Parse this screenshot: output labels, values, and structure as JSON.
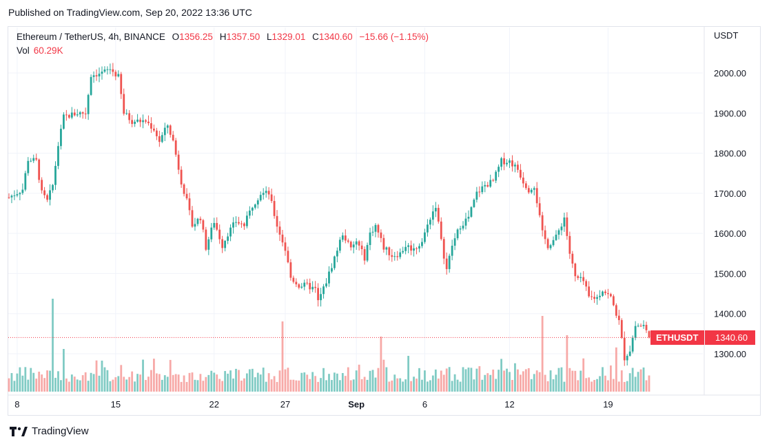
{
  "header": {
    "published": "Published on TradingView.com, Sep 20, 2022 13:36 UTC"
  },
  "legend": {
    "symbol": "Ethereum / TetherUS, 4h, BINANCE",
    "open_label": "O",
    "open": "1356.25",
    "high_label": "H",
    "high": "1357.50",
    "low_label": "L",
    "low": "1329.01",
    "close_label": "C",
    "close": "1340.60",
    "change": "−15.66 (−1.15%)",
    "vol_label": "Vol",
    "vol": "60.29K"
  },
  "price_tag": {
    "ticker": "ETHUSDT",
    "price": "1340.60"
  },
  "footer": {
    "brand": "TradingView",
    "logo_icon": "tradingview-logo-icon"
  },
  "colors": {
    "up": "#26a69a",
    "down": "#ef5350",
    "up_vol": "#80cbc4",
    "down_vol": "#f7a9a7",
    "tag": "#f23645"
  },
  "chart_data": {
    "type": "candlestick",
    "currency_label": "USDT",
    "y_ticks": [
      2000,
      1900,
      1800,
      1700,
      1600,
      1500,
      1400,
      1300
    ],
    "y_tick_labels": [
      "2000.00",
      "1900.00",
      "1800.00",
      "1700.00",
      "1600.00",
      "1500.00",
      "1400.00",
      "1300.00"
    ],
    "ylim": [
      1200,
      2100
    ],
    "x_tick_labels": [
      "8",
      "15",
      "22",
      "27",
      "Sep",
      "6",
      "12",
      "19"
    ],
    "x_tick_bar_index": [
      3,
      39,
      75,
      101,
      127,
      152,
      183,
      219
    ],
    "close_path_keypoints": [
      [
        0,
        1690
      ],
      [
        5,
        1710
      ],
      [
        7,
        1785
      ],
      [
        10,
        1780
      ],
      [
        12,
        1700
      ],
      [
        14,
        1680
      ],
      [
        16,
        1720
      ],
      [
        18,
        1820
      ],
      [
        20,
        1890
      ],
      [
        25,
        1900
      ],
      [
        28,
        1900
      ],
      [
        30,
        1995
      ],
      [
        34,
        2000
      ],
      [
        37,
        2010
      ],
      [
        40,
        1990
      ],
      [
        42,
        1900
      ],
      [
        45,
        1880
      ],
      [
        50,
        1880
      ],
      [
        53,
        1860
      ],
      [
        55,
        1830
      ],
      [
        58,
        1870
      ],
      [
        60,
        1830
      ],
      [
        63,
        1730
      ],
      [
        65,
        1680
      ],
      [
        67,
        1620
      ],
      [
        70,
        1640
      ],
      [
        72,
        1565
      ],
      [
        75,
        1630
      ],
      [
        78,
        1570
      ],
      [
        80,
        1600
      ],
      [
        83,
        1630
      ],
      [
        86,
        1620
      ],
      [
        89,
        1670
      ],
      [
        92,
        1700
      ],
      [
        95,
        1700
      ],
      [
        98,
        1620
      ],
      [
        101,
        1560
      ],
      [
        103,
        1490
      ],
      [
        106,
        1470
      ],
      [
        109,
        1470
      ],
      [
        112,
        1460
      ],
      [
        113,
        1430
      ],
      [
        116,
        1480
      ],
      [
        119,
        1540
      ],
      [
        122,
        1600
      ],
      [
        125,
        1560
      ],
      [
        127,
        1580
      ],
      [
        130,
        1540
      ],
      [
        132,
        1600
      ],
      [
        134,
        1620
      ],
      [
        137,
        1565
      ],
      [
        140,
        1545
      ],
      [
        143,
        1550
      ],
      [
        145,
        1570
      ],
      [
        148,
        1560
      ],
      [
        151,
        1580
      ],
      [
        154,
        1640
      ],
      [
        156,
        1670
      ],
      [
        158,
        1580
      ],
      [
        160,
        1510
      ],
      [
        162,
        1570
      ],
      [
        165,
        1620
      ],
      [
        168,
        1640
      ],
      [
        171,
        1700
      ],
      [
        174,
        1720
      ],
      [
        177,
        1730
      ],
      [
        180,
        1780
      ],
      [
        183,
        1780
      ],
      [
        186,
        1760
      ],
      [
        188,
        1730
      ],
      [
        190,
        1710
      ],
      [
        192,
        1720
      ],
      [
        195,
        1600
      ],
      [
        197,
        1570
      ],
      [
        200,
        1590
      ],
      [
        203,
        1640
      ],
      [
        205,
        1550
      ],
      [
        207,
        1490
      ],
      [
        210,
        1480
      ],
      [
        212,
        1440
      ],
      [
        215,
        1440
      ],
      [
        217,
        1460
      ],
      [
        220,
        1440
      ],
      [
        223,
        1380
      ],
      [
        225,
        1290
      ],
      [
        227,
        1310
      ],
      [
        229,
        1370
      ],
      [
        232,
        1370
      ],
      [
        234,
        1341
      ]
    ],
    "bar_count": 235,
    "last_close": 1340.6
  }
}
